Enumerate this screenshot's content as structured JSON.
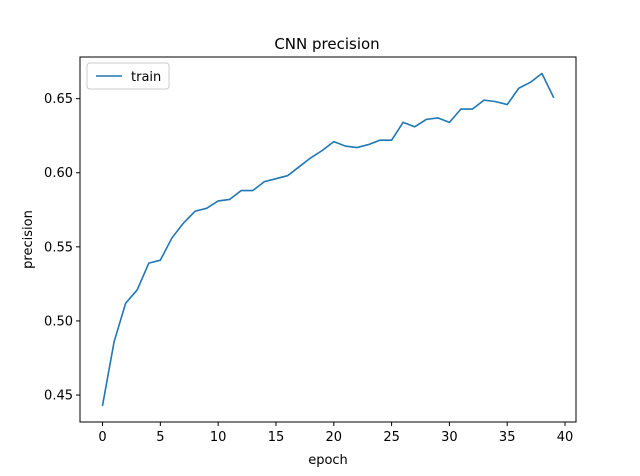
{
  "chart_data": {
    "type": "line",
    "title": "CNN precision",
    "xlabel": "epoch",
    "ylabel": "precision",
    "xlim": [
      -1.95,
      40.95
    ],
    "ylim": [
      0.4318,
      0.6781
    ],
    "xticks": [
      0,
      5,
      10,
      15,
      20,
      25,
      30,
      35,
      40
    ],
    "yticks": [
      0.45,
      0.5,
      0.55,
      0.6,
      0.65
    ],
    "ytick_labels": [
      "0.45",
      "0.50",
      "0.55",
      "0.60",
      "0.65"
    ],
    "grid": false,
    "legend": {
      "location": "upper left"
    },
    "series": [
      {
        "name": "train",
        "color": "#1f77b4",
        "x": [
          0,
          1,
          2,
          3,
          4,
          5,
          6,
          7,
          8,
          9,
          10,
          11,
          12,
          13,
          14,
          15,
          16,
          17,
          18,
          19,
          20,
          21,
          22,
          23,
          24,
          25,
          26,
          27,
          28,
          29,
          30,
          31,
          32,
          33,
          34,
          35,
          36,
          37,
          38,
          39
        ],
        "y": [
          0.443,
          0.486,
          0.512,
          0.521,
          0.539,
          0.541,
          0.556,
          0.566,
          0.574,
          0.576,
          0.581,
          0.582,
          0.588,
          0.588,
          0.594,
          0.596,
          0.598,
          0.604,
          0.61,
          0.615,
          0.621,
          0.618,
          0.617,
          0.619,
          0.622,
          0.622,
          0.634,
          0.631,
          0.636,
          0.637,
          0.634,
          0.643,
          0.643,
          0.649,
          0.648,
          0.646,
          0.657,
          0.661,
          0.667,
          0.651
        ]
      }
    ]
  }
}
